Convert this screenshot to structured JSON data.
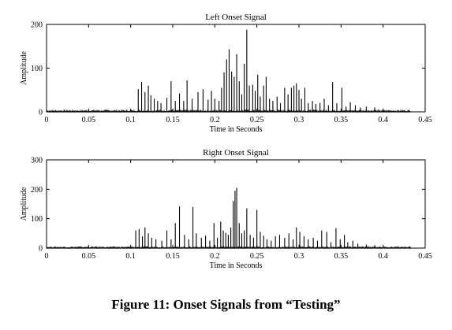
{
  "caption": "Figure 11: Onset Signals from “Testing”",
  "chart_data": [
    {
      "type": "bar",
      "title": "Left Onset Signal",
      "xlabel": "Time in Seconds",
      "ylabel": "Amplitude",
      "xlim": [
        0,
        0.45
      ],
      "ylim": [
        0,
        200
      ],
      "xticks": [
        0,
        0.05,
        0.1,
        0.15,
        0.2,
        0.25,
        0.3,
        0.35,
        0.4,
        0.45
      ],
      "xtick_labels": [
        "0",
        "0.05",
        "0.1",
        "0.15",
        "0.2",
        "0.25",
        "0.3",
        "0.35",
        "0.4",
        "0.45"
      ],
      "yticks": [
        0,
        100,
        200
      ],
      "ytick_labels": [
        "0",
        "100",
        "200"
      ],
      "noise_floor": 5,
      "x_end": 0.433,
      "spikes": [
        {
          "x": 0.109,
          "y": 52
        },
        {
          "x": 0.113,
          "y": 68
        },
        {
          "x": 0.117,
          "y": 45
        },
        {
          "x": 0.121,
          "y": 60
        },
        {
          "x": 0.124,
          "y": 38
        },
        {
          "x": 0.128,
          "y": 30
        },
        {
          "x": 0.132,
          "y": 25
        },
        {
          "x": 0.136,
          "y": 20
        },
        {
          "x": 0.143,
          "y": 32
        },
        {
          "x": 0.148,
          "y": 70
        },
        {
          "x": 0.153,
          "y": 25
        },
        {
          "x": 0.158,
          "y": 42
        },
        {
          "x": 0.163,
          "y": 25
        },
        {
          "x": 0.167,
          "y": 72
        },
        {
          "x": 0.173,
          "y": 30
        },
        {
          "x": 0.18,
          "y": 45
        },
        {
          "x": 0.186,
          "y": 52
        },
        {
          "x": 0.192,
          "y": 28
        },
        {
          "x": 0.196,
          "y": 48
        },
        {
          "x": 0.2,
          "y": 30
        },
        {
          "x": 0.205,
          "y": 25
        },
        {
          "x": 0.208,
          "y": 55
        },
        {
          "x": 0.211,
          "y": 90
        },
        {
          "x": 0.214,
          "y": 120
        },
        {
          "x": 0.217,
          "y": 143
        },
        {
          "x": 0.22,
          "y": 92
        },
        {
          "x": 0.223,
          "y": 80
        },
        {
          "x": 0.226,
          "y": 132
        },
        {
          "x": 0.229,
          "y": 70
        },
        {
          "x": 0.232,
          "y": 40
        },
        {
          "x": 0.235,
          "y": 110
        },
        {
          "x": 0.238,
          "y": 188
        },
        {
          "x": 0.241,
          "y": 60
        },
        {
          "x": 0.245,
          "y": 62
        },
        {
          "x": 0.248,
          "y": 48
        },
        {
          "x": 0.251,
          "y": 85
        },
        {
          "x": 0.254,
          "y": 35
        },
        {
          "x": 0.258,
          "y": 60
        },
        {
          "x": 0.261,
          "y": 80
        },
        {
          "x": 0.265,
          "y": 30
        },
        {
          "x": 0.269,
          "y": 25
        },
        {
          "x": 0.274,
          "y": 35
        },
        {
          "x": 0.278,
          "y": 20
        },
        {
          "x": 0.283,
          "y": 55
        },
        {
          "x": 0.287,
          "y": 40
        },
        {
          "x": 0.291,
          "y": 55
        },
        {
          "x": 0.294,
          "y": 60
        },
        {
          "x": 0.297,
          "y": 65
        },
        {
          "x": 0.3,
          "y": 50
        },
        {
          "x": 0.303,
          "y": 30
        },
        {
          "x": 0.307,
          "y": 55
        },
        {
          "x": 0.311,
          "y": 20
        },
        {
          "x": 0.316,
          "y": 25
        },
        {
          "x": 0.32,
          "y": 18
        },
        {
          "x": 0.325,
          "y": 20
        },
        {
          "x": 0.33,
          "y": 30
        },
        {
          "x": 0.335,
          "y": 15
        },
        {
          "x": 0.34,
          "y": 68
        },
        {
          "x": 0.345,
          "y": 20
        },
        {
          "x": 0.351,
          "y": 55
        },
        {
          "x": 0.356,
          "y": 12
        },
        {
          "x": 0.361,
          "y": 22
        },
        {
          "x": 0.367,
          "y": 15
        },
        {
          "x": 0.373,
          "y": 10
        },
        {
          "x": 0.38,
          "y": 12
        },
        {
          "x": 0.39,
          "y": 10
        }
      ]
    },
    {
      "type": "bar",
      "title": "Right Onset Signal",
      "xlabel": "Time in Seconds",
      "ylabel": "Amplitude",
      "xlim": [
        0,
        0.45
      ],
      "ylim": [
        0,
        300
      ],
      "xticks": [
        0,
        0.05,
        0.1,
        0.15,
        0.2,
        0.25,
        0.3,
        0.35,
        0.4,
        0.45
      ],
      "xtick_labels": [
        "0",
        "0.05",
        "0.1",
        "0.15",
        "0.2",
        "0.25",
        "0.3",
        "0.35",
        "0.4",
        "0.45"
      ],
      "yticks": [
        0,
        100,
        200,
        300
      ],
      "ytick_labels": [
        "0",
        "100",
        "200",
        "300"
      ],
      "noise_floor": 6,
      "x_end": 0.433,
      "spikes": [
        {
          "x": 0.106,
          "y": 60
        },
        {
          "x": 0.11,
          "y": 65
        },
        {
          "x": 0.114,
          "y": 40
        },
        {
          "x": 0.117,
          "y": 70
        },
        {
          "x": 0.121,
          "y": 50
        },
        {
          "x": 0.125,
          "y": 35
        },
        {
          "x": 0.13,
          "y": 30
        },
        {
          "x": 0.137,
          "y": 25
        },
        {
          "x": 0.143,
          "y": 60
        },
        {
          "x": 0.148,
          "y": 30
        },
        {
          "x": 0.153,
          "y": 85
        },
        {
          "x": 0.158,
          "y": 142
        },
        {
          "x": 0.164,
          "y": 45
        },
        {
          "x": 0.169,
          "y": 30
        },
        {
          "x": 0.174,
          "y": 140
        },
        {
          "x": 0.178,
          "y": 50
        },
        {
          "x": 0.184,
          "y": 35
        },
        {
          "x": 0.189,
          "y": 42
        },
        {
          "x": 0.194,
          "y": 25
        },
        {
          "x": 0.199,
          "y": 85
        },
        {
          "x": 0.203,
          "y": 35
        },
        {
          "x": 0.207,
          "y": 90
        },
        {
          "x": 0.21,
          "y": 60
        },
        {
          "x": 0.213,
          "y": 52
        },
        {
          "x": 0.216,
          "y": 45
        },
        {
          "x": 0.219,
          "y": 70
        },
        {
          "x": 0.222,
          "y": 160
        },
        {
          "x": 0.224,
          "y": 195
        },
        {
          "x": 0.226,
          "y": 205
        },
        {
          "x": 0.229,
          "y": 85
        },
        {
          "x": 0.232,
          "y": 50
        },
        {
          "x": 0.235,
          "y": 60
        },
        {
          "x": 0.238,
          "y": 135
        },
        {
          "x": 0.242,
          "y": 45
        },
        {
          "x": 0.246,
          "y": 35
        },
        {
          "x": 0.25,
          "y": 130
        },
        {
          "x": 0.254,
          "y": 55
        },
        {
          "x": 0.258,
          "y": 42
        },
        {
          "x": 0.262,
          "y": 30
        },
        {
          "x": 0.267,
          "y": 25
        },
        {
          "x": 0.272,
          "y": 40
        },
        {
          "x": 0.277,
          "y": 45
        },
        {
          "x": 0.283,
          "y": 35
        },
        {
          "x": 0.288,
          "y": 50
        },
        {
          "x": 0.293,
          "y": 30
        },
        {
          "x": 0.297,
          "y": 70
        },
        {
          "x": 0.301,
          "y": 55
        },
        {
          "x": 0.306,
          "y": 40
        },
        {
          "x": 0.311,
          "y": 30
        },
        {
          "x": 0.317,
          "y": 35
        },
        {
          "x": 0.322,
          "y": 25
        },
        {
          "x": 0.327,
          "y": 60
        },
        {
          "x": 0.333,
          "y": 55
        },
        {
          "x": 0.338,
          "y": 20
        },
        {
          "x": 0.344,
          "y": 68
        },
        {
          "x": 0.349,
          "y": 30
        },
        {
          "x": 0.354,
          "y": 45
        },
        {
          "x": 0.358,
          "y": 20
        },
        {
          "x": 0.364,
          "y": 25
        },
        {
          "x": 0.37,
          "y": 15
        },
        {
          "x": 0.38,
          "y": 12
        },
        {
          "x": 0.39,
          "y": 10
        }
      ]
    }
  ]
}
